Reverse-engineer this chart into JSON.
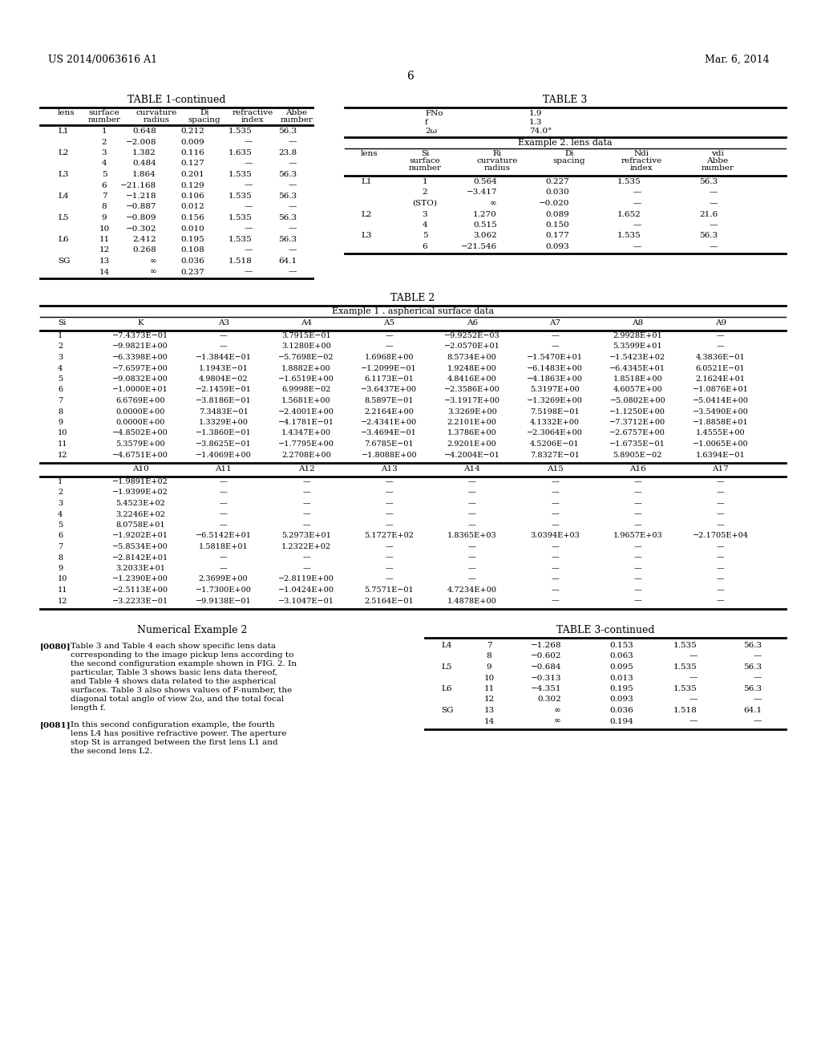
{
  "page_header_left": "US 2014/0063616 A1",
  "page_header_right": "Mar. 6, 2014",
  "page_number": "6",
  "table1_title": "TABLE 1-continued",
  "table1_headers": [
    "lens",
    "surface\nnumber",
    "curvature\nradius",
    "Di\nspacing",
    "refractive\nindex",
    "Abbe\nnumber"
  ],
  "table1_rows": [
    [
      "L1",
      "1",
      "0.648",
      "0.212",
      "1.535",
      "56.3"
    ],
    [
      "",
      "2",
      "−2.008",
      "0.009",
      "—",
      "—"
    ],
    [
      "L2",
      "3",
      "1.382",
      "0.116",
      "1.635",
      "23.8"
    ],
    [
      "",
      "4",
      "0.484",
      "0.127",
      "—",
      "—"
    ],
    [
      "L3",
      "5",
      "1.864",
      "0.201",
      "1.535",
      "56.3"
    ],
    [
      "",
      "6",
      "−21.168",
      "0.129",
      "—",
      "—"
    ],
    [
      "L4",
      "7",
      "−1.218",
      "0.106",
      "1.535",
      "56.3"
    ],
    [
      "",
      "8",
      "−0.887",
      "0.012",
      "—",
      "—"
    ],
    [
      "L5",
      "9",
      "−0.809",
      "0.156",
      "1.535",
      "56.3"
    ],
    [
      "",
      "10",
      "−0.302",
      "0.010",
      "—",
      "—"
    ],
    [
      "L6",
      "11",
      "2.412",
      "0.195",
      "1.535",
      "56.3"
    ],
    [
      "",
      "12",
      "0.268",
      "0.108",
      "—",
      "—"
    ],
    [
      "SG",
      "13",
      "∞",
      "0.036",
      "1.518",
      "64.1"
    ],
    [
      "",
      "14",
      "∞",
      "0.237",
      "—",
      "—"
    ]
  ],
  "table3_title": "TABLE 3",
  "table3_top": [
    [
      "FNo",
      "1.9"
    ],
    [
      "f",
      "1.3"
    ],
    [
      "2ω",
      "74.0°"
    ]
  ],
  "table3_subtitle": "Example 2. lens data",
  "table3_headers": [
    "lens",
    "Si\nsurface\nnumber",
    "Ri\ncurvature\nradius",
    "Di\nspacing",
    "Ndi\nrefractive\nindex",
    "vdi\nAbbe\nnumber"
  ],
  "table3_rows": [
    [
      "L1",
      "1",
      "0.564",
      "0.227",
      "1.535",
      "56.3"
    ],
    [
      "",
      "2",
      "−3.417",
      "0.030",
      "—",
      "—"
    ],
    [
      "",
      "(STO)",
      "∞",
      "−0.020",
      "—",
      "—"
    ],
    [
      "L2",
      "3",
      "1.270",
      "0.089",
      "1.652",
      "21.6"
    ],
    [
      "",
      "4",
      "0.515",
      "0.150",
      "—",
      "—"
    ],
    [
      "L3",
      "5",
      "3.062",
      "0.177",
      "1.535",
      "56.3"
    ],
    [
      "",
      "6",
      "−21.546",
      "0.093",
      "—",
      "—"
    ]
  ],
  "table3cont_title": "TABLE 3-continued",
  "table3cont_rows": [
    [
      "L4",
      "7",
      "−1.268",
      "0.153",
      "1.535",
      "56.3"
    ],
    [
      "",
      "8",
      "−0.602",
      "0.063",
      "—",
      "—"
    ],
    [
      "L5",
      "9",
      "−0.684",
      "0.095",
      "1.535",
      "56.3"
    ],
    [
      "",
      "10",
      "−0.313",
      "0.013",
      "—",
      "—"
    ],
    [
      "L6",
      "11",
      "−4.351",
      "0.195",
      "1.535",
      "56.3"
    ],
    [
      "",
      "12",
      "0.302",
      "0.093",
      "—",
      "—"
    ],
    [
      "SG",
      "13",
      "∞",
      "0.036",
      "1.518",
      "64.1"
    ],
    [
      "",
      "14",
      "∞",
      "0.194",
      "—",
      "—"
    ]
  ],
  "table2_title": "TABLE 2",
  "table2_subtitle": "Example 1 . aspherical surface data",
  "table2_headers_top": [
    "Si",
    "K",
    "A3",
    "A4",
    "A5",
    "A6",
    "A7",
    "A8",
    "A9"
  ],
  "table2_rows_top": [
    [
      "1",
      "−7.4373E−01",
      "—",
      "3.7915E−01",
      "—",
      "−9.9252E−03",
      "—",
      "2.9928E+01",
      "—"
    ],
    [
      "2",
      "−9.9821E+00",
      "—",
      "3.1280E+00",
      "—",
      "−2.0570E+01",
      "—",
      "5.3599E+01",
      "—"
    ],
    [
      "3",
      "−6.3398E+00",
      "−1.3844E−01",
      "−5.7698E−02",
      "1.6968E+00",
      "8.5734E+00",
      "−1.5470E+01",
      "−1.5423E+02",
      "4.3836E−01"
    ],
    [
      "4",
      "−7.6597E+00",
      "1.1943E−01",
      "1.8882E+00",
      "−1.2099E−01",
      "1.9248E+00",
      "−6.1483E+00",
      "−6.4345E+01",
      "6.0521E−01"
    ],
    [
      "5",
      "−9.0832E+00",
      "4.9804E−02",
      "−1.6519E+00",
      "6.1173E−01",
      "4.8416E+00",
      "−4.1863E+00",
      "1.8518E+00",
      "2.1624E+01"
    ],
    [
      "6",
      "−1.0000E+01",
      "−2.1459E−01",
      "6.9998E−02",
      "−3.6437E+00",
      "−2.3586E+00",
      "5.3197E+00",
      "4.6057E+00",
      "−1.0876E+01"
    ],
    [
      "7",
      "6.6769E+00",
      "−3.8186E−01",
      "1.5681E+00",
      "8.5897E−01",
      "−3.1917E+00",
      "−1.3269E+00",
      "−5.0802E+00",
      "−5.0414E+00"
    ],
    [
      "8",
      "0.0000E+00",
      "7.3483E−01",
      "−2.4001E+00",
      "2.2164E+00",
      "3.3269E+00",
      "7.5198E−01",
      "−1.1250E+00",
      "−3.5490E+00"
    ],
    [
      "9",
      "0.0000E+00",
      "1.3329E+00",
      "−4.1781E−01",
      "−2.4341E+00",
      "2.2101E+00",
      "4.1332E+00",
      "−7.3712E+00",
      "−1.8858E+01"
    ],
    [
      "10",
      "−4.8502E+00",
      "−1.3860E−01",
      "1.4347E+00",
      "−3.4694E−01",
      "1.3786E+00",
      "−2.3064E+00",
      "−2.6757E+00",
      "1.4555E+00"
    ],
    [
      "11",
      "5.3579E+00",
      "−3.8625E−01",
      "−1.7795E+00",
      "7.6785E−01",
      "2.9201E+00",
      "4.5206E−01",
      "−1.6735E−01",
      "−1.0065E+00"
    ],
    [
      "12",
      "−4.6751E+00",
      "−1.4069E+00",
      "2.2708E+00",
      "−1.8088E+00",
      "−4.2004E−01",
      "7.8327E−01",
      "5.8905E−02",
      "1.6394E−01"
    ]
  ],
  "table2_headers_bot": [
    "",
    "A10",
    "A11",
    "A12",
    "A13",
    "A14",
    "A15",
    "A16",
    "A17"
  ],
  "table2_rows_bot": [
    [
      "1",
      "−1.9891E+02",
      "—",
      "—",
      "—",
      "—",
      "—",
      "—",
      "—"
    ],
    [
      "2",
      "−1.9399E+02",
      "—",
      "—",
      "—",
      "—",
      "—",
      "—",
      "—"
    ],
    [
      "3",
      "5.4523E+02",
      "—",
      "—",
      "—",
      "—",
      "—",
      "—",
      "—"
    ],
    [
      "4",
      "3.2246E+02",
      "—",
      "—",
      "—",
      "—",
      "—",
      "—",
      "—"
    ],
    [
      "5",
      "8.0758E+01",
      "—",
      "—",
      "—",
      "—",
      "—",
      "—",
      "—"
    ],
    [
      "6",
      "−1.9202E+01",
      "−6.5142E+01",
      "5.2973E+01",
      "5.1727E+02",
      "1.8365E+03",
      "3.0394E+03",
      "1.9657E+03",
      "−2.1705E+04"
    ],
    [
      "7",
      "−5.8534E+00",
      "1.5818E+01",
      "1.2322E+02",
      "—",
      "—",
      "—",
      "—",
      "—"
    ],
    [
      "8",
      "−2.8142E+01",
      "—",
      "—",
      "—",
      "—",
      "—",
      "—",
      "—"
    ],
    [
      "9",
      "3.2033E+01",
      "—",
      "—",
      "—",
      "—",
      "—",
      "—",
      "—"
    ],
    [
      "10",
      "−1.2390E+00",
      "2.3699E+00",
      "−2.8119E+00",
      "—",
      "—",
      "—",
      "—",
      "—"
    ],
    [
      "11",
      "−2.5113E+00",
      "−1.7300E+00",
      "−1.0424E+00",
      "5.7571E−01",
      "4.7234E+00",
      "—",
      "—",
      "—"
    ],
    [
      "12",
      "−3.2233E−01",
      "−9.9138E−01",
      "−3.1047E−01",
      "2.5164E−01",
      "1.4878E+00",
      "—",
      "—",
      "—"
    ]
  ],
  "num_ex2_title": "Numerical Example 2",
  "para_0080": "[0080]  Table 3 and Table 4 each show specific lens data corresponding to the image pickup lens according to the second configuration example shown in FIG. 2. In particular, Table 3 shows basic lens data thereof, and Table 4 shows data related to the aspherical surfaces. Table 3 also shows values of F-number, the diagonal total angle of view 2ω, and the total focal length f.",
  "para_0081": "[0081]  In this second configuration example, the fourth lens L4 has positive refractive power. The aperture stop St is arranged between the first lens L1 and the second lens L2."
}
